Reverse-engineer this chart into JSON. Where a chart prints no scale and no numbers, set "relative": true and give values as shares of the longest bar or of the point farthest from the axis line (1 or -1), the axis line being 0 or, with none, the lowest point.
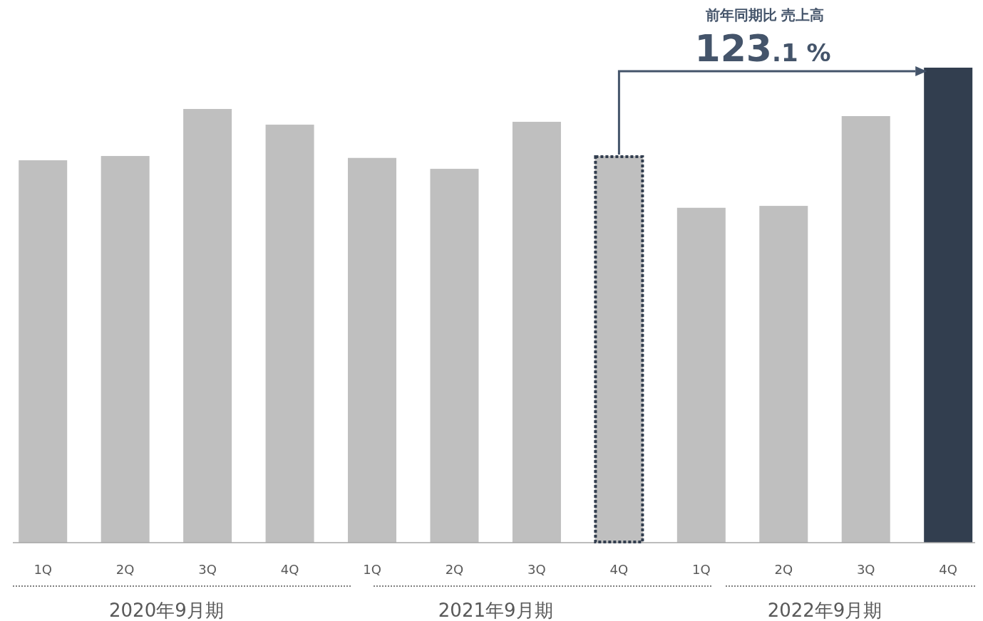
{
  "chart_data": {
    "type": "bar",
    "relative": true,
    "categories": [
      "1Q",
      "2Q",
      "3Q",
      "4Q",
      "1Q",
      "2Q",
      "3Q",
      "4Q",
      "1Q",
      "2Q",
      "3Q",
      "4Q"
    ],
    "values": [
      0.805,
      0.814,
      0.913,
      0.88,
      0.81,
      0.787,
      0.886,
      0.814,
      0.705,
      0.709,
      0.898,
      1
    ],
    "colors": [
      "#bfbfbf",
      "#bfbfbf",
      "#bfbfbf",
      "#bfbfbf",
      "#bfbfbf",
      "#bfbfbf",
      "#bfbfbf",
      "#bfbfbf",
      "#bfbfbf",
      "#bfbfbf",
      "#bfbfbf",
      "#323e4f"
    ],
    "annotations": [
      "前年同期比 売上高",
      "123.1 %",
      "2020年9月期",
      "2021年9月期",
      "2022年9月期"
    ]
  }
}
